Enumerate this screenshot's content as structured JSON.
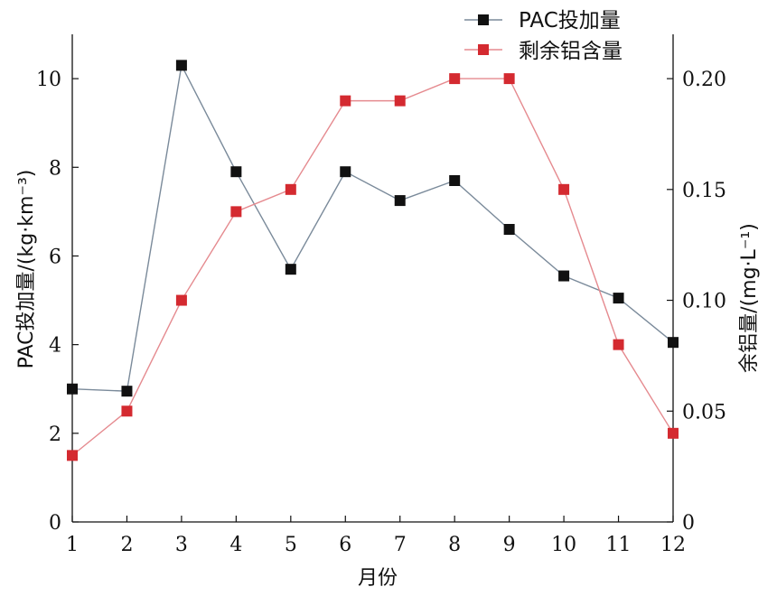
{
  "chart_data": {
    "type": "line",
    "x": [
      1,
      2,
      3,
      4,
      5,
      6,
      7,
      8,
      9,
      10,
      11,
      12
    ],
    "xlabel": "月份",
    "xlim": [
      1,
      12
    ],
    "x_ticks": [
      "1",
      "2",
      "3",
      "4",
      "5",
      "6",
      "7",
      "8",
      "9",
      "10",
      "11",
      "12"
    ],
    "y_left": {
      "label": "PAC投加量/(kg·km⁻³)",
      "range": [
        0,
        11
      ],
      "ticks": [
        "0",
        "2",
        "4",
        "6",
        "8",
        "10"
      ],
      "tick_values": [
        0,
        2,
        4,
        6,
        8,
        10
      ]
    },
    "y_right": {
      "label": "余铝量/(mg·L⁻¹)",
      "range": [
        0,
        0.22
      ],
      "ticks": [
        "0",
        "0.05",
        "0.10",
        "0.15",
        "0.20"
      ],
      "tick_values": [
        0,
        0.05,
        0.1,
        0.15,
        0.2
      ]
    },
    "series": [
      {
        "name": "PAC投加量",
        "axis": "left",
        "color": "#111111",
        "line_color": "#7a8a9a",
        "marker": "square",
        "values": [
          3.0,
          2.95,
          10.3,
          7.9,
          5.7,
          7.9,
          7.25,
          7.7,
          6.6,
          5.55,
          5.05,
          4.05
        ]
      },
      {
        "name": "剩余铝含量",
        "axis": "right",
        "color": "#d42a30",
        "line_color": "#e58a8f",
        "marker": "square",
        "values": [
          0.03,
          0.05,
          0.1,
          0.14,
          0.15,
          0.19,
          0.19,
          0.2,
          0.2,
          0.15,
          0.08,
          0.04
        ]
      }
    ],
    "legend": {
      "placement": "top-right"
    },
    "grid": false
  }
}
